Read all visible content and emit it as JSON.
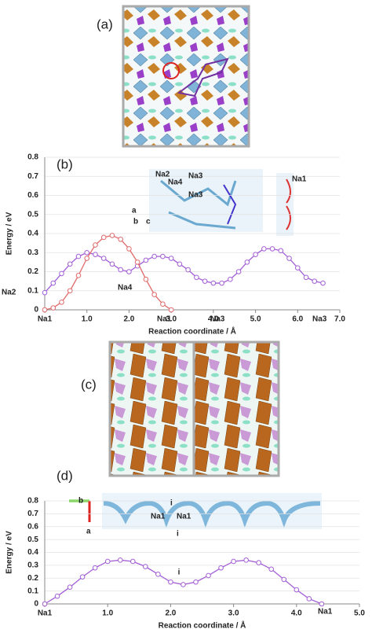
{
  "figure_labels": [
    "(a)",
    "(c)"
  ],
  "chart_data": [
    {
      "type": "line",
      "panel": "(b)",
      "x_label": "Reaction coordinate / Å",
      "y_label": "Energy / eV",
      "xlim": [
        0,
        7
      ],
      "xticks": [
        {
          "value": 0,
          "label": "Na1"
        },
        {
          "value": 1,
          "label": "1.0"
        },
        {
          "value": 2,
          "label": "2.0"
        },
        {
          "value": 3,
          "label": "3.0"
        },
        {
          "value": 4,
          "label": "4.0"
        },
        {
          "value": 5,
          "label": "5.0"
        },
        {
          "value": 6,
          "label": "6.0"
        },
        {
          "value": 7,
          "label": "7.0"
        }
      ],
      "ylim": [
        0,
        0.8
      ],
      "yticks": [
        0,
        0.1,
        0.2,
        0.3,
        0.4,
        0.5,
        0.6,
        0.7,
        0.8
      ],
      "annotations": [
        "Na2",
        "Na4",
        "Na3",
        "Na3",
        "Na1"
      ],
      "inset_labels": [
        "Na2",
        "Na4",
        "Na3",
        "Na3",
        "Na1",
        "a",
        "b",
        "c"
      ],
      "series": [
        {
          "color": "#a35fd6",
          "x": [
            0,
            0.2,
            0.4,
            0.6,
            0.8,
            1.0,
            1.2,
            1.4,
            1.6,
            1.8,
            2.0,
            2.2,
            2.4,
            2.6,
            2.8,
            3.0,
            3.2,
            3.4,
            3.6,
            3.8,
            4.0,
            4.2,
            4.4,
            4.6,
            4.8,
            5.0,
            5.2,
            5.4,
            5.6,
            5.8,
            6.0,
            6.2,
            6.4,
            6.6
          ],
          "values": [
            0.09,
            0.14,
            0.19,
            0.24,
            0.28,
            0.3,
            0.29,
            0.27,
            0.24,
            0.21,
            0.2,
            0.23,
            0.26,
            0.28,
            0.28,
            0.27,
            0.24,
            0.21,
            0.17,
            0.15,
            0.14,
            0.14,
            0.16,
            0.2,
            0.25,
            0.29,
            0.32,
            0.32,
            0.31,
            0.27,
            0.22,
            0.17,
            0.15,
            0.14
          ]
        },
        {
          "color": "#e06a6a",
          "x": [
            0,
            0.2,
            0.4,
            0.6,
            0.8,
            1.0,
            1.2,
            1.4,
            1.6,
            1.8,
            2.0,
            2.2,
            2.4,
            2.6,
            2.8,
            3.0
          ],
          "values": [
            0,
            0.01,
            0.04,
            0.1,
            0.18,
            0.27,
            0.34,
            0.38,
            0.39,
            0.37,
            0.32,
            0.25,
            0.16,
            0.08,
            0.03,
            0
          ]
        }
      ]
    },
    {
      "type": "line",
      "panel": "(d)",
      "x_label": "Reaction coordinate / Å",
      "y_label": "Energy / eV",
      "xlim": [
        0,
        5
      ],
      "xticks": [
        {
          "value": 0,
          "label": "Na1"
        },
        {
          "value": 1,
          "label": "1.0"
        },
        {
          "value": 2,
          "label": "2.0"
        },
        {
          "value": 3,
          "label": "3.0"
        },
        {
          "value": 4,
          "label": "4.0"
        },
        {
          "value": 5,
          "label": "5.0"
        }
      ],
      "ylim": [
        0,
        0.8
      ],
      "yticks": [
        0,
        0.1,
        0.2,
        0.3,
        0.4,
        0.5,
        0.6,
        0.7,
        0.8
      ],
      "annotations": [
        "i",
        "Na1"
      ],
      "inset_labels": [
        "Na1",
        "Na1",
        "i",
        "i",
        "b",
        "a"
      ],
      "series": [
        {
          "color": "#a35fd6",
          "x": [
            0,
            0.2,
            0.4,
            0.6,
            0.8,
            1.0,
            1.2,
            1.4,
            1.6,
            1.8,
            2.0,
            2.2,
            2.4,
            2.6,
            2.8,
            3.0,
            3.2,
            3.4,
            3.6,
            3.8,
            4.0,
            4.2,
            4.4
          ],
          "values": [
            0,
            0.06,
            0.13,
            0.21,
            0.28,
            0.33,
            0.34,
            0.33,
            0.29,
            0.23,
            0.17,
            0.15,
            0.17,
            0.22,
            0.28,
            0.33,
            0.34,
            0.32,
            0.27,
            0.19,
            0.11,
            0.04,
            0
          ]
        }
      ]
    }
  ]
}
